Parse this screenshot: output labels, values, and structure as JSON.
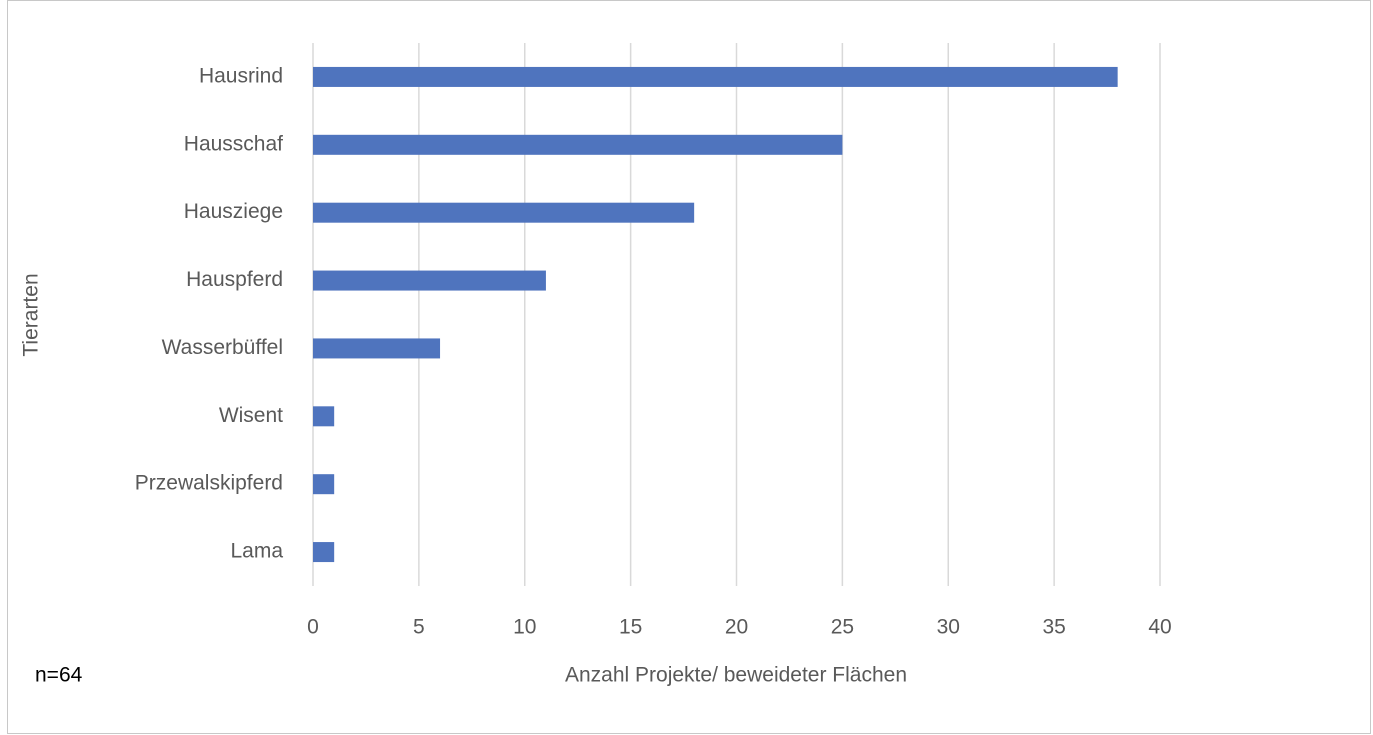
{
  "chart_data": {
    "type": "bar",
    "orientation": "horizontal",
    "categories": [
      "Hausrind",
      "Hausschaf",
      "Hausziege",
      "Hauspferd",
      "Wasserbüffel",
      "Wisent",
      "Przewalskipferd",
      "Lama"
    ],
    "values": [
      38,
      25,
      18,
      11,
      6,
      1,
      1,
      1
    ],
    "color": "#4f74be",
    "xlim": [
      0,
      40
    ],
    "xticks": [
      0,
      5,
      10,
      15,
      20,
      25,
      30,
      35,
      40
    ],
    "x_label": "Anzahl Projekte/ beweideter Flächen",
    "y_label": "Tierarten",
    "annotation": "n=64",
    "grid": true
  }
}
